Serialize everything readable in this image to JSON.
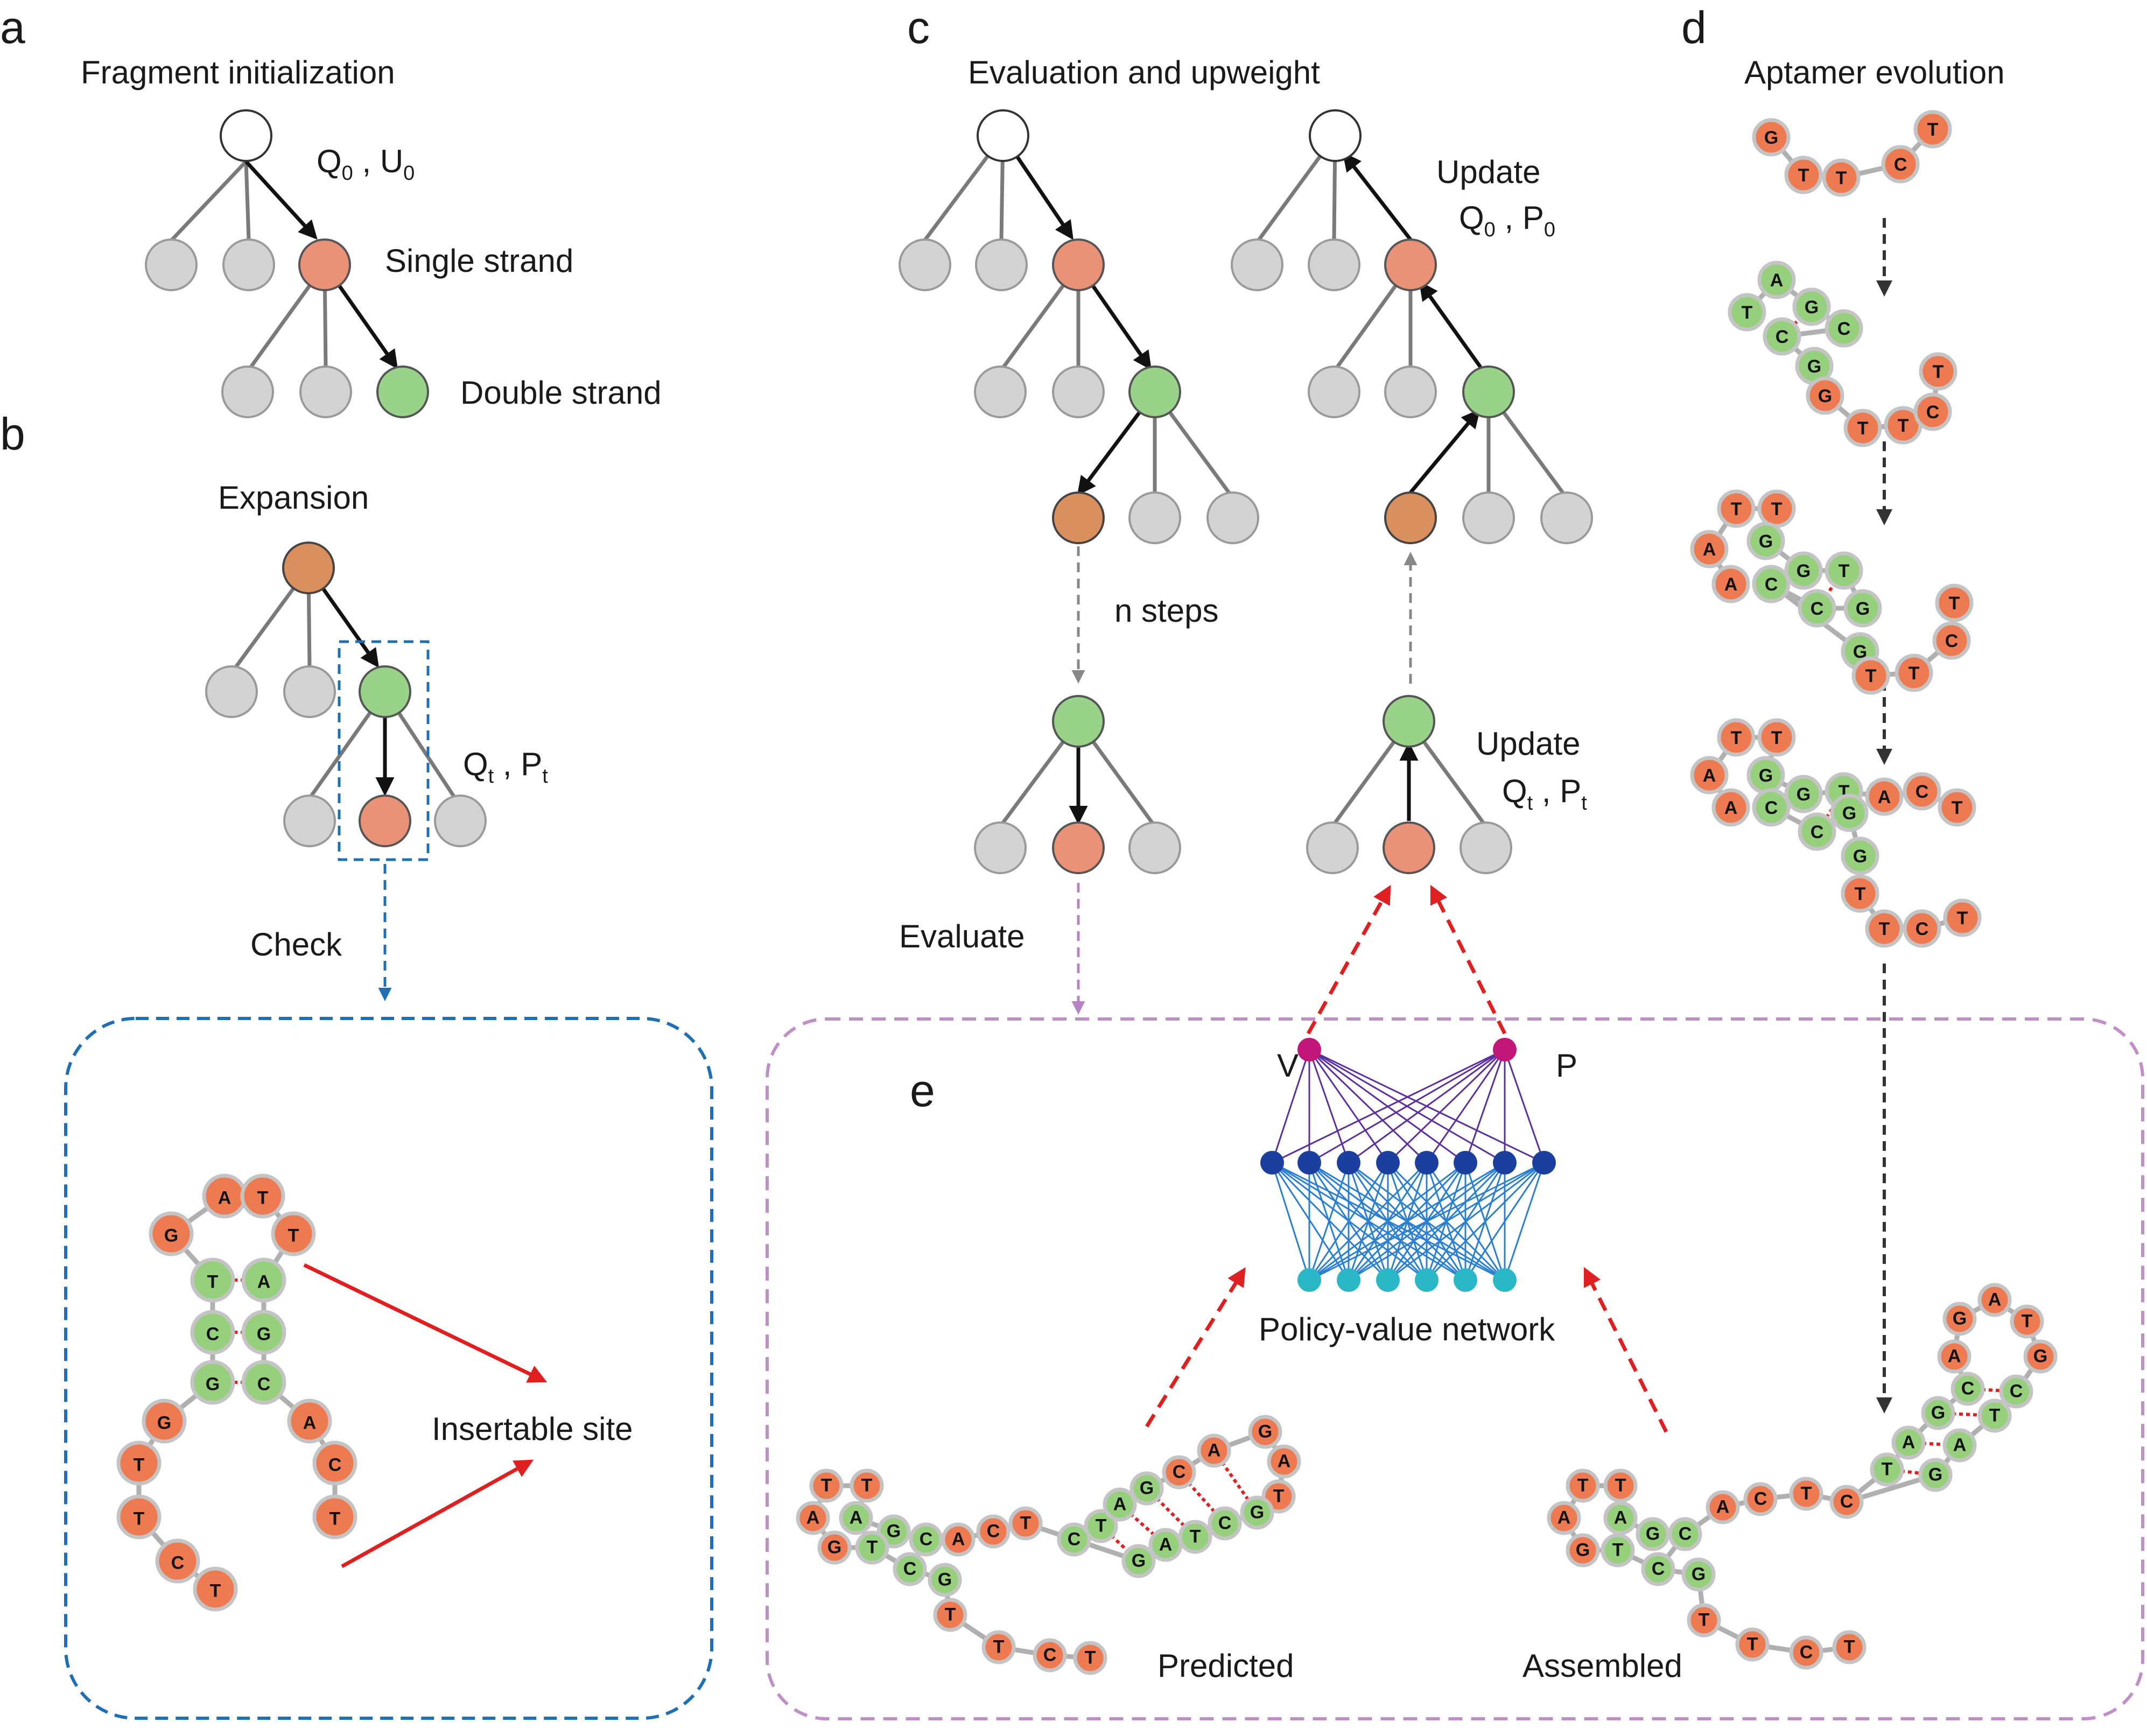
{
  "panels": {
    "a": {
      "letter": "a",
      "title": "Fragment initialization",
      "q": "Q",
      "q_sub": "0",
      "u": "U",
      "u_sub": "0",
      "single_strand": "Single strand",
      "double_strand": "Double strand"
    },
    "b": {
      "letter": "b",
      "title": "Expansion",
      "q": "Q",
      "q_sub": "t",
      "p": "P",
      "p_sub": "t",
      "check": "Check",
      "insertable_site": "Insertable site"
    },
    "c": {
      "letter": "c",
      "title": "Evaluation and upweight",
      "update_top": "Update",
      "q": "Q",
      "q0_sub": "0",
      "p": "P",
      "p0_sub": "0",
      "n_steps": "n steps",
      "update_bottom": "Update",
      "qt_sub": "t",
      "pt_sub": "t",
      "evaluate": "Evaluate"
    },
    "d": {
      "letter": "d",
      "title": "Aptamer evolution"
    },
    "e": {
      "letter": "e",
      "v_label": "V",
      "p_label": "P",
      "network_label": "Policy-value network",
      "predicted": "Predicted",
      "assembled": "Assembled"
    }
  },
  "colors": {
    "single_strand": "#ee7a52",
    "double_strand": "#96d07d",
    "tree_gray": "#d3d3d3",
    "panel_b_box": "#1f6fb4",
    "panel_e_box": "#c08fc8",
    "red_arrow": "#e02020",
    "network_top": "#c2167a",
    "network_mid": "#1b3f9e",
    "network_bottom": "#2bb8c6"
  },
  "bases": {
    "b_sequence": [
      "A",
      "T",
      "G",
      "T",
      "T",
      "A",
      "C",
      "G",
      "G",
      "C",
      "G",
      "A",
      "T",
      "C",
      "T",
      "T",
      "C",
      "T"
    ],
    "d_step1": [
      "G",
      "T",
      "T",
      "C",
      "T"
    ],
    "d_step2": [
      "A",
      "T",
      "G",
      "C",
      "C",
      "G",
      "G",
      "T",
      "T",
      "C",
      "T"
    ],
    "d_step3": [
      "T",
      "T",
      "A",
      "G",
      "A",
      "G",
      "C",
      "T",
      "C",
      "G",
      "G",
      "T",
      "T",
      "C",
      "T"
    ],
    "d_step4": [
      "T",
      "T",
      "A",
      "G",
      "A",
      "G",
      "C",
      "T",
      "C",
      "G",
      "A",
      "C",
      "T",
      "G",
      "T",
      "T",
      "C",
      "T"
    ],
    "e_predicted": [
      "T",
      "T",
      "A",
      "A",
      "G",
      "G",
      "T",
      "C",
      "C",
      "A",
      "C",
      "T",
      "C",
      "T",
      "A",
      "G",
      "C",
      "A",
      "G",
      "A",
      "T",
      "G",
      "C",
      "T",
      "A",
      "G",
      "G",
      "T",
      "T",
      "C",
      "T"
    ],
    "e_assembled": [
      "T",
      "T",
      "A",
      "A",
      "G",
      "G",
      "T",
      "C",
      "C",
      "A",
      "C",
      "T",
      "C",
      "T",
      "A",
      "G",
      "C",
      "A",
      "G",
      "A",
      "T",
      "G",
      "C",
      "T",
      "A",
      "G",
      "G",
      "T",
      "T",
      "C",
      "T"
    ]
  }
}
